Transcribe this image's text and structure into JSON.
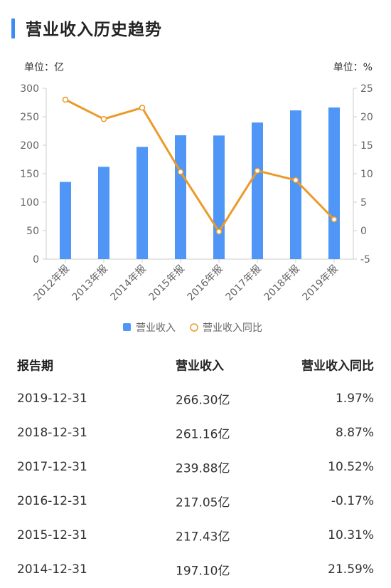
{
  "header": {
    "title": "营业收入历史趋势"
  },
  "units": {
    "left": "单位：亿",
    "right": "单位：%"
  },
  "chart_data": {
    "type": "bar",
    "categories": [
      "2012年报",
      "2013年报",
      "2014年报",
      "2015年报",
      "2016年报",
      "2017年报",
      "2018年报",
      "2019年报"
    ],
    "series": [
      {
        "name": "营业收入",
        "type": "bar",
        "axis": "left",
        "values": [
          135.5,
          162.1,
          197.1,
          217.43,
          217.05,
          239.88,
          261.16,
          266.3
        ]
      },
      {
        "name": "营业收入同比",
        "type": "line",
        "axis": "right",
        "values": [
          23.0,
          19.6,
          21.59,
          10.31,
          -0.17,
          10.52,
          8.87,
          1.97
        ]
      }
    ],
    "yaxis_left": {
      "min": 0,
      "max": 300,
      "ticks": [
        "0",
        "50",
        "100",
        "150",
        "200",
        "250",
        "300"
      ]
    },
    "yaxis_right": {
      "min": -5,
      "max": 25,
      "ticks": [
        "-5",
        "0",
        "5",
        "10",
        "15",
        "20",
        "25"
      ]
    },
    "grid": false,
    "legend": "bottom-center",
    "colors": {
      "bar": "#4f96f6",
      "line": "#eb9a28",
      "axis": "#cccccc",
      "tick_text": "#666666"
    }
  },
  "table": {
    "headers": [
      "报告期",
      "营业收入",
      "营业收入同比"
    ],
    "rows": [
      [
        "2019-12-31",
        "266.30亿",
        "1.97%"
      ],
      [
        "2018-12-31",
        "261.16亿",
        "8.87%"
      ],
      [
        "2017-12-31",
        "239.88亿",
        "10.52%"
      ],
      [
        "2016-12-31",
        "217.05亿",
        "-0.17%"
      ],
      [
        "2015-12-31",
        "217.43亿",
        "10.31%"
      ],
      [
        "2014-12-31",
        "197.10亿",
        "21.59%"
      ]
    ]
  }
}
